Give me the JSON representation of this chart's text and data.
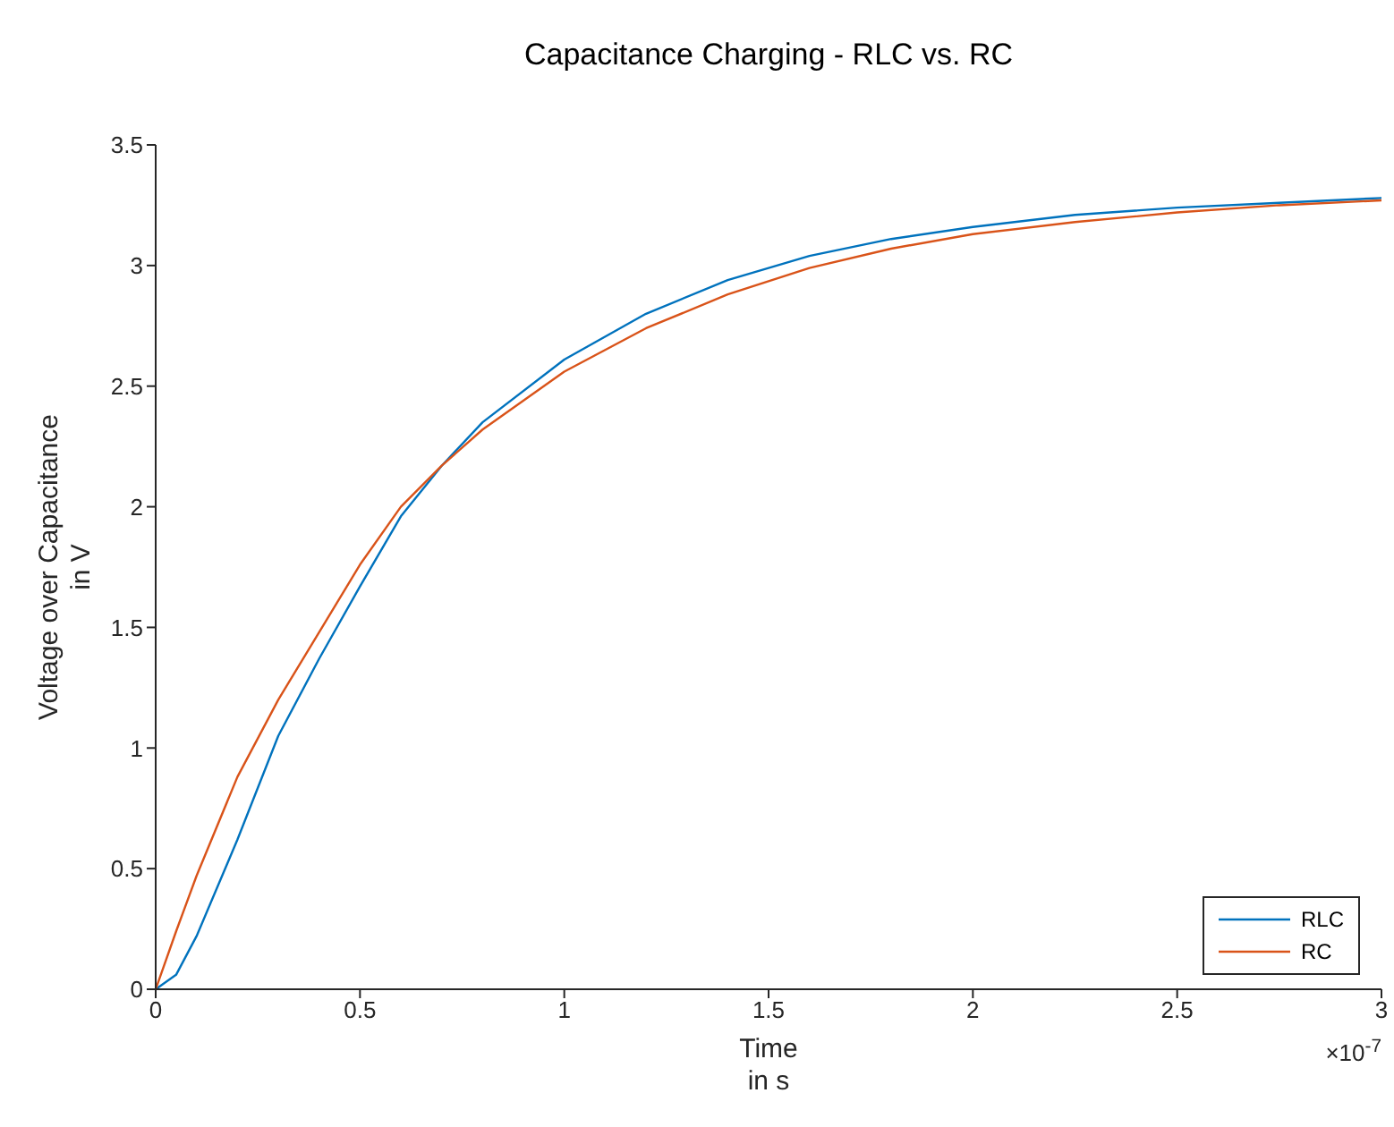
{
  "chart_data": {
    "type": "line",
    "title": "Capacitance Charging - RLC vs. RC",
    "xlabel": "Time\nin s",
    "ylabel": "Voltage over Capacitance\nin V",
    "annotations": [
      "×10$^{-7}$"
    ],
    "x": [
      0,
      0.05,
      0.1,
      0.2,
      0.3,
      0.4,
      0.5,
      0.6,
      0.7,
      0.8,
      1.0,
      1.2,
      1.4,
      1.6,
      1.8,
      2.0,
      2.25,
      2.5,
      2.75,
      3.0
    ],
    "series": [
      {
        "name": "RLC",
        "color": "#0072bd",
        "values": [
          0,
          0.06,
          0.22,
          0.62,
          1.05,
          1.37,
          1.67,
          1.96,
          2.17,
          2.35,
          2.61,
          2.8,
          2.94,
          3.04,
          3.11,
          3.16,
          3.21,
          3.24,
          3.26,
          3.28
        ]
      },
      {
        "name": "RC",
        "color": "#d95319",
        "values": [
          0,
          0.24,
          0.47,
          0.88,
          1.2,
          1.48,
          1.76,
          2.0,
          2.17,
          2.32,
          2.56,
          2.74,
          2.88,
          2.99,
          3.07,
          3.13,
          3.18,
          3.22,
          3.25,
          3.27
        ]
      }
    ],
    "xlim": [
      0,
      3
    ],
    "xticks": [
      0,
      0.5,
      1,
      1.5,
      2,
      2.5,
      3
    ],
    "ylim": [
      0,
      3.5
    ],
    "yticks": [
      0,
      0.5,
      1,
      1.5,
      2,
      2.5,
      3,
      3.5
    ],
    "grid": false,
    "legend": "bottom right",
    "marker": "none",
    "line_style": "solid"
  }
}
